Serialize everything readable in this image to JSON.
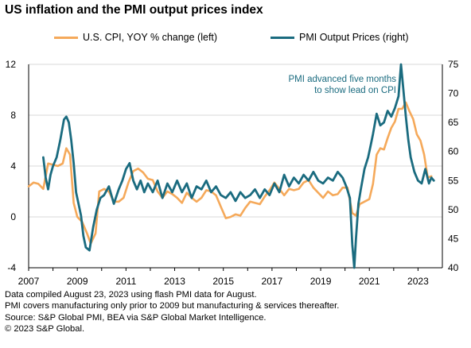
{
  "title": "US inflation and the PMI output prices index",
  "legend": [
    {
      "label": "U.S. CPI, YOY % change (left)",
      "color": "#f5a95a"
    },
    {
      "label": "PMI Output Prices (right)",
      "color": "#1a6b7f"
    }
  ],
  "annotation": [
    "PMI advanced five months",
    "to show lead on CPI"
  ],
  "footnotes": [
    "Data compiled August 23, 2023 using flash PMI data for August.",
    "PMI covers manufacturing only prior to 2009 but manufacturing & services thereafter.",
    "Source: S&P Global PMI, BEA via S&P Global Market Intelligence.",
    "© 2023 S&P Global."
  ],
  "chart_data": {
    "type": "line",
    "title": "US inflation and the PMI output prices index",
    "x_range": [
      2007.0,
      2024.0
    ],
    "x_ticks": [
      "2007",
      "2009",
      "2011",
      "2013",
      "2015",
      "2017",
      "2019",
      "2021",
      "2023"
    ],
    "y_left": {
      "range": [
        -4,
        12
      ],
      "ticks": [
        "12",
        "8",
        "4",
        "0",
        "-4"
      ]
    },
    "y_right": {
      "range": [
        40,
        75
      ],
      "ticks": [
        "75",
        "70",
        "65",
        "60",
        "55",
        "50",
        "45",
        "40"
      ]
    },
    "grid": true,
    "legend_position": "top",
    "series": [
      {
        "name": "U.S. CPI, YOY % change (left)",
        "axis": "left",
        "color": "#f5a95a",
        "x": [
          2007.0,
          2007.2,
          2007.4,
          2007.6,
          2007.8,
          2008.0,
          2008.2,
          2008.4,
          2008.55,
          2008.7,
          2008.85,
          2009.0,
          2009.2,
          2009.4,
          2009.55,
          2009.75,
          2009.9,
          2010.1,
          2010.3,
          2010.5,
          2010.7,
          2010.9,
          2011.1,
          2011.3,
          2011.5,
          2011.7,
          2011.9,
          2012.1,
          2012.3,
          2012.5,
          2012.7,
          2012.9,
          2013.1,
          2013.3,
          2013.5,
          2013.7,
          2013.9,
          2014.1,
          2014.3,
          2014.5,
          2014.7,
          2014.9,
          2015.1,
          2015.3,
          2015.5,
          2015.7,
          2015.9,
          2016.1,
          2016.3,
          2016.5,
          2016.7,
          2016.9,
          2017.1,
          2017.3,
          2017.5,
          2017.7,
          2017.9,
          2018.1,
          2018.3,
          2018.5,
          2018.7,
          2018.9,
          2019.1,
          2019.3,
          2019.5,
          2019.7,
          2019.9,
          2020.1,
          2020.3,
          2020.45,
          2020.6,
          2020.8,
          2021.0,
          2021.15,
          2021.3,
          2021.45,
          2021.6,
          2021.75,
          2021.9,
          2022.05,
          2022.2,
          2022.35,
          2022.5,
          2022.65,
          2022.8,
          2022.95,
          2023.1,
          2023.25,
          2023.4,
          2023.55
        ],
        "values": [
          2.4,
          2.7,
          2.6,
          2.2,
          4.2,
          4.1,
          4.0,
          4.2,
          5.4,
          4.9,
          1.1,
          0.0,
          -0.4,
          -1.3,
          -2.1,
          -1.3,
          2.0,
          2.2,
          2.0,
          1.2,
          1.2,
          1.5,
          2.7,
          3.6,
          3.8,
          3.5,
          3.0,
          2.9,
          2.0,
          1.5,
          2.0,
          1.8,
          1.5,
          1.1,
          1.9,
          1.5,
          1.2,
          1.5,
          2.1,
          2.0,
          1.7,
          0.8,
          -0.1,
          0.0,
          0.2,
          0.1,
          0.7,
          1.2,
          1.1,
          1.0,
          1.6,
          2.1,
          2.7,
          2.2,
          1.7,
          2.2,
          2.1,
          2.2,
          2.7,
          2.9,
          2.3,
          1.9,
          1.5,
          2.0,
          1.7,
          1.8,
          2.3,
          2.3,
          0.3,
          0.1,
          1.0,
          1.2,
          1.4,
          2.6,
          4.9,
          5.4,
          5.3,
          6.2,
          7.0,
          7.5,
          8.5,
          8.5,
          9.0,
          8.3,
          7.7,
          6.5,
          6.0,
          4.9,
          3.1,
          3.2
        ]
      },
      {
        "name": "PMI Output Prices (right)",
        "axis": "right",
        "color": "#1a6b7f",
        "x": [
          2007.6,
          2007.7,
          2007.8,
          2007.9,
          2008.0,
          2008.15,
          2008.3,
          2008.45,
          2008.55,
          2008.65,
          2008.75,
          2008.85,
          2008.95,
          2009.05,
          2009.15,
          2009.25,
          2009.35,
          2009.5,
          2009.65,
          2009.8,
          2009.95,
          2010.1,
          2010.3,
          2010.5,
          2010.7,
          2010.85,
          2011.0,
          2011.15,
          2011.3,
          2011.45,
          2011.6,
          2011.75,
          2011.9,
          2012.1,
          2012.3,
          2012.5,
          2012.7,
          2012.9,
          2013.1,
          2013.3,
          2013.5,
          2013.7,
          2013.9,
          2014.1,
          2014.3,
          2014.5,
          2014.7,
          2014.9,
          2015.1,
          2015.3,
          2015.5,
          2015.7,
          2015.9,
          2016.1,
          2016.3,
          2016.5,
          2016.7,
          2016.9,
          2017.1,
          2017.3,
          2017.5,
          2017.7,
          2017.9,
          2018.1,
          2018.3,
          2018.5,
          2018.7,
          2018.9,
          2019.1,
          2019.3,
          2019.5,
          2019.7,
          2019.9,
          2020.05,
          2020.2,
          2020.3,
          2020.38,
          2020.45,
          2020.55,
          2020.65,
          2020.8,
          2020.95,
          2021.05,
          2021.15,
          2021.3,
          2021.45,
          2021.6,
          2021.75,
          2021.9,
          2022.05,
          2022.2,
          2022.3,
          2022.4,
          2022.5,
          2022.6,
          2022.7,
          2022.85,
          2023.0,
          2023.15,
          2023.3,
          2023.45,
          2023.55,
          2023.65
        ],
        "values": [
          59.0,
          55.5,
          53.5,
          56.0,
          57.5,
          59.0,
          62.0,
          65.5,
          66.0,
          65.0,
          62.0,
          58.0,
          53.0,
          51.0,
          49.0,
          45.5,
          43.5,
          43.0,
          47.0,
          50.0,
          52.0,
          52.5,
          54.0,
          51.0,
          53.5,
          55.0,
          57.0,
          58.0,
          55.0,
          53.5,
          55.0,
          53.0,
          54.5,
          53.0,
          55.0,
          52.0,
          54.5,
          53.0,
          55.0,
          53.0,
          54.5,
          52.0,
          54.0,
          53.5,
          55.0,
          53.0,
          54.0,
          52.5,
          52.0,
          53.0,
          51.5,
          53.0,
          52.0,
          52.5,
          53.5,
          52.0,
          53.5,
          52.5,
          54.5,
          53.0,
          56.0,
          54.0,
          55.5,
          54.5,
          56.0,
          55.0,
          56.5,
          55.0,
          54.5,
          55.5,
          55.0,
          56.5,
          55.5,
          54.0,
          52.0,
          44.0,
          40.0,
          45.0,
          51.0,
          53.5,
          57.0,
          59.0,
          61.0,
          63.0,
          66.5,
          64.5,
          65.0,
          67.0,
          66.0,
          67.5,
          69.5,
          75.0,
          70.5,
          66.0,
          62.0,
          59.0,
          56.5,
          55.0,
          54.5,
          57.0,
          54.5,
          55.5,
          55.0
        ]
      }
    ]
  }
}
